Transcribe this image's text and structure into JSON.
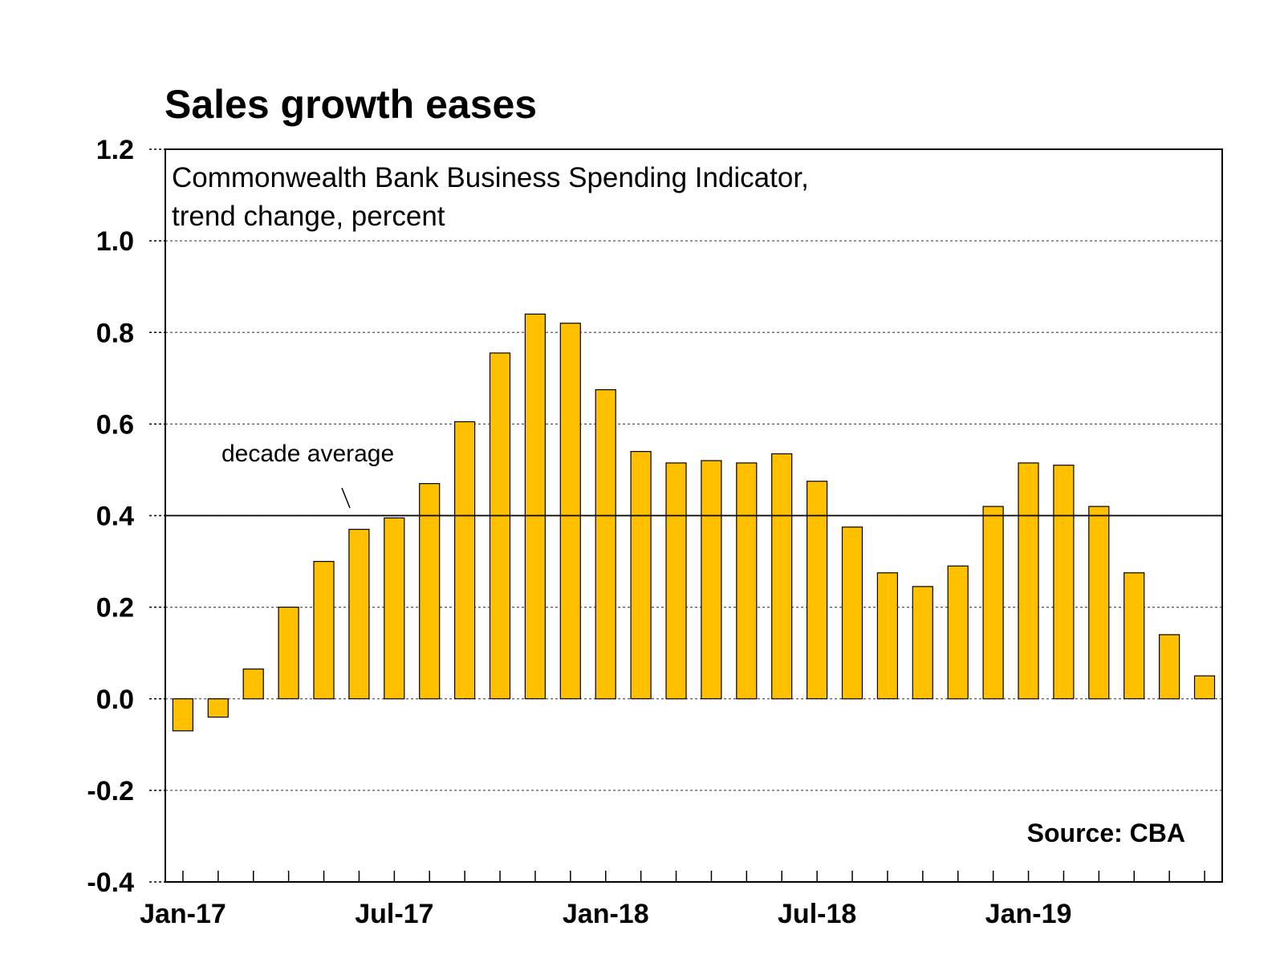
{
  "chart_data": {
    "type": "bar",
    "title": "Sales growth eases",
    "subtitle_lines": [
      "Commonwealth Bank Business Spending Indicator,",
      "trend change, percent"
    ],
    "source": "Source: CBA",
    "ylim": [
      -0.4,
      1.2
    ],
    "yticks": [
      "1.2",
      "1.0",
      "0.8",
      "0.6",
      "0.4",
      "0.2",
      "0.0",
      "-0.2",
      "-0.4"
    ],
    "ytick_values": [
      1.2,
      1.0,
      0.8,
      0.6,
      0.4,
      0.2,
      0.0,
      -0.2,
      -0.4
    ],
    "xtick_labels": [
      {
        "index": 0,
        "label": "Jan-17"
      },
      {
        "index": 6,
        "label": "Jul-17"
      },
      {
        "index": 12,
        "label": "Jan-18"
      },
      {
        "index": 18,
        "label": "Jul-18"
      },
      {
        "index": 24,
        "label": "Jan-19"
      }
    ],
    "categories": [
      "Jan-17",
      "Feb-17",
      "Mar-17",
      "Apr-17",
      "May-17",
      "Jun-17",
      "Jul-17",
      "Aug-17",
      "Sep-17",
      "Oct-17",
      "Nov-17",
      "Dec-17",
      "Jan-18",
      "Feb-18",
      "Mar-18",
      "Apr-18",
      "May-18",
      "Jun-18",
      "Jul-18",
      "Aug-18",
      "Sep-18",
      "Oct-18",
      "Nov-18",
      "Dec-18",
      "Jan-19",
      "Feb-19",
      "Mar-19",
      "Apr-19",
      "May-19",
      "Jun-19"
    ],
    "values": [
      -0.07,
      -0.04,
      0.065,
      0.2,
      0.3,
      0.37,
      0.395,
      0.47,
      0.605,
      0.755,
      0.84,
      0.82,
      0.675,
      0.54,
      0.515,
      0.52,
      0.515,
      0.535,
      0.475,
      0.375,
      0.275,
      0.245,
      0.29,
      0.42,
      0.515,
      0.51,
      0.42,
      0.275,
      0.14,
      0.05
    ],
    "reference_line": {
      "value": 0.4,
      "label": "decade average"
    },
    "grid": true,
    "bar_color": "#FFC000",
    "bar_edge_color": "#000000"
  }
}
